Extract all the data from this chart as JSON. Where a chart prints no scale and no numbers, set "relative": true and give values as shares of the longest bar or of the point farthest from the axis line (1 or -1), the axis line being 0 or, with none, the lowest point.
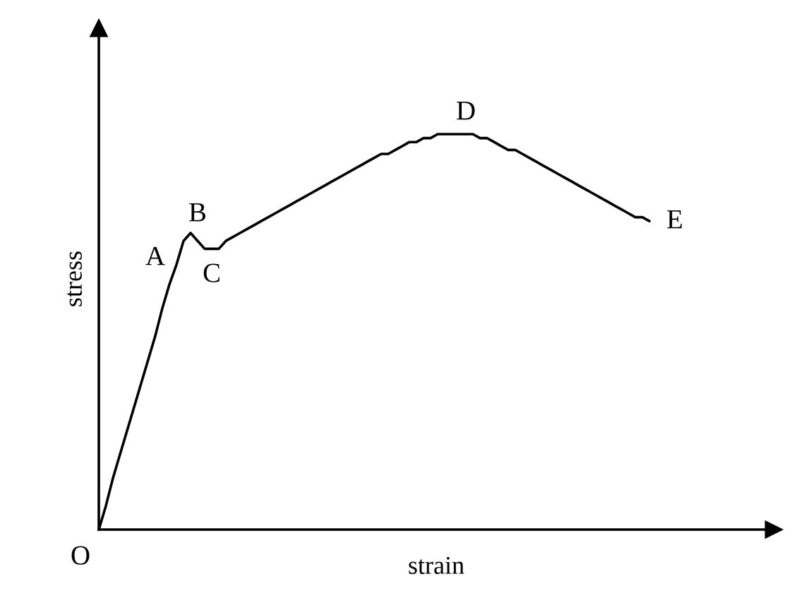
{
  "chart_data": {
    "type": "line",
    "relative": true,
    "xlabel": "strain",
    "ylabel": "stress",
    "categories": [
      null,
      null,
      null,
      null,
      null,
      null,
      null,
      null,
      null,
      null,
      null,
      null,
      null,
      null,
      null,
      null,
      null,
      null,
      null,
      null,
      null,
      null,
      null,
      null,
      null,
      null,
      null,
      null,
      null,
      null,
      null,
      null,
      null,
      null,
      null,
      null,
      null,
      null,
      null,
      null,
      null,
      null,
      null,
      null,
      null,
      null,
      null,
      null,
      null,
      null,
      null,
      null,
      null,
      null,
      null,
      null,
      null,
      null,
      null,
      null,
      null,
      null,
      null,
      null,
      null,
      null,
      null,
      null,
      null,
      null,
      null,
      null,
      null,
      null,
      null,
      null,
      null,
      null,
      null
    ],
    "series": [
      {
        "color": "#000000",
        "values": [
          0,
          0.06,
          0.13,
          0.19,
          0.25,
          0.31,
          0.37,
          0.43,
          0.49,
          0.56,
          0.62,
          0.67,
          0.73,
          0.75,
          0.73,
          0.71,
          0.71,
          0.71,
          0.73,
          0.74,
          0.75,
          0.76,
          0.77,
          0.78,
          0.79,
          0.8,
          0.81,
          0.82,
          0.83,
          0.84,
          0.85,
          0.86,
          0.87,
          0.88,
          0.89,
          0.9,
          0.91,
          0.92,
          0.93,
          0.94,
          0.95,
          0.95,
          0.96,
          0.97,
          0.98,
          0.98,
          0.99,
          0.99,
          1.0,
          1.0,
          1.0,
          1.0,
          1.0,
          1.0,
          0.99,
          0.99,
          0.98,
          0.97,
          0.96,
          0.96,
          0.95,
          0.94,
          0.93,
          0.92,
          0.91,
          0.9,
          0.89,
          0.88,
          0.87,
          0.86,
          0.85,
          0.84,
          0.83,
          0.82,
          0.81,
          0.8,
          0.79,
          0.79,
          0.78
        ]
      }
    ],
    "annotations": [
      "O",
      "A",
      "B",
      "C",
      "D",
      "E"
    ],
    "grid": false,
    "legend": false
  }
}
